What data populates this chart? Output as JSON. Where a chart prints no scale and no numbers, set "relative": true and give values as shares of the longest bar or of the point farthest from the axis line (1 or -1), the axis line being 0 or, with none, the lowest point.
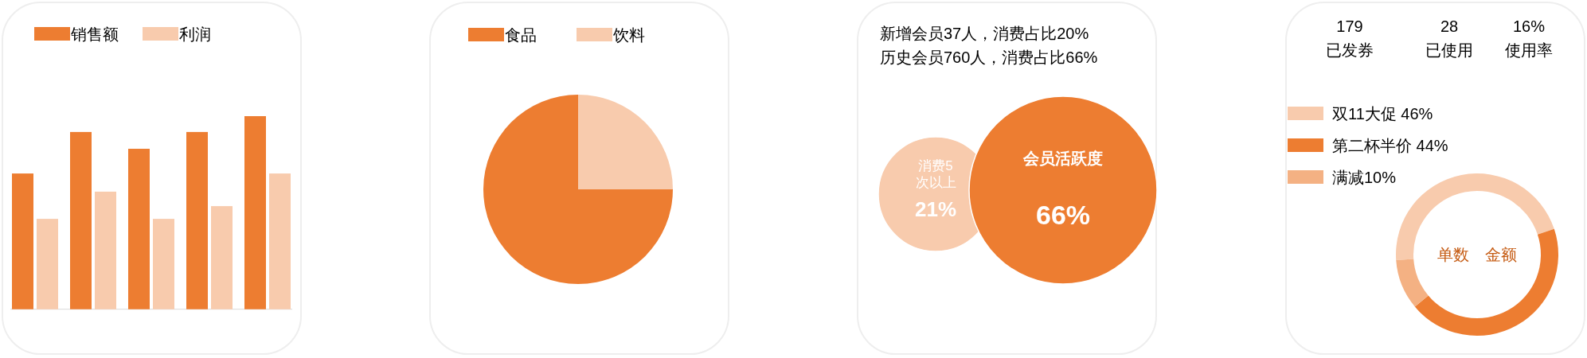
{
  "chart_data": [
    {
      "type": "bar",
      "relative": true,
      "legend": "top",
      "categories": [
        null,
        null,
        null,
        null,
        null
      ],
      "series": [
        {
          "name": "销售额",
          "color": "#ed7d31",
          "values": [
            0.703,
            0.918,
            0.831,
            0.918,
            1
          ]
        },
        {
          "name": "利润",
          "color": "#f8cbad",
          "values": [
            0.468,
            0.609,
            0.468,
            0.534,
            0.703
          ]
        }
      ]
    },
    {
      "type": "pie",
      "legend": "top",
      "categories": [
        "食品",
        "饮料"
      ],
      "values": [
        75,
        25
      ],
      "colors": [
        "#ed7d31",
        "#f8cbad"
      ]
    },
    {
      "type": "other",
      "annotations": [
        "新增会员37人，消费占比20%",
        "历史会员760人，消费占比66%"
      ],
      "categories": [
        "消费5次以上",
        "会员活跃度"
      ],
      "values": [
        21,
        66
      ],
      "value_labels": [
        "21%",
        "66%"
      ],
      "colors": [
        "#f8cbad",
        "#ed7d31"
      ]
    },
    {
      "type": "donut",
      "legend": "left",
      "categories": [
        "双11大促  46%",
        "第二杯半价  44%",
        "满减10%"
      ],
      "values": [
        46,
        44,
        10
      ],
      "colors": [
        "#f8cbad",
        "#ed7d31",
        "#f4b183"
      ],
      "annotations": [
        "179",
        "已发券",
        "28",
        "已使用",
        "16%",
        "使用率",
        "单数",
        "金额"
      ]
    }
  ]
}
